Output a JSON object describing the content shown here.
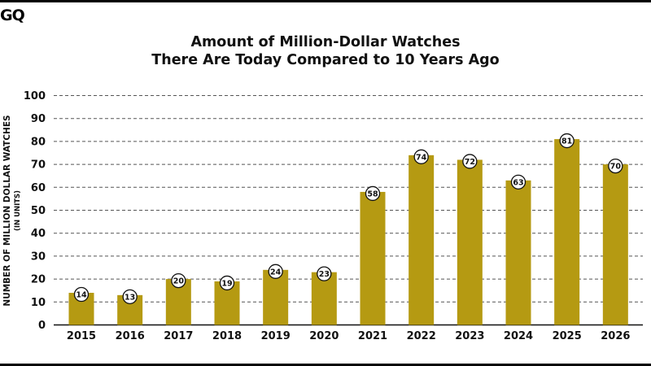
{
  "logo": "GQ",
  "chart_data": {
    "type": "bar",
    "title_lines": [
      "Amount of Million-Dollar Watches",
      "There Are Today Compared to 10 Years Ago"
    ],
    "ylabel": "NUMBER OF MILLION DOLLAR WATCHES",
    "ylabel_sub": "(IN UNITS)",
    "xlabel": "",
    "categories": [
      "2015",
      "2016",
      "2017",
      "2018",
      "2019",
      "2020",
      "2021",
      "2022",
      "2023",
      "2024",
      "2025",
      "2026"
    ],
    "values": [
      14,
      13,
      20,
      19,
      24,
      23,
      58,
      74,
      72,
      63,
      81,
      70
    ],
    "ylim": [
      0,
      100
    ],
    "yticks": [
      0,
      10,
      20,
      30,
      40,
      50,
      60,
      70,
      80,
      90,
      100
    ],
    "grid": true,
    "grid_style": "dashed",
    "data_labels": true,
    "bar_color": "#B59A12"
  }
}
